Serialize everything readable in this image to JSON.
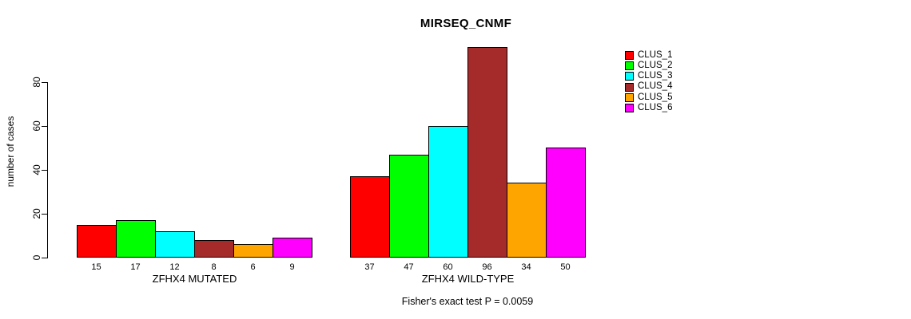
{
  "chart_data": {
    "type": "bar",
    "title": "MIRSEQ_CNMF",
    "ylabel": "number of cases",
    "yticks": [
      0,
      20,
      40,
      60,
      80
    ],
    "ylim": [
      0,
      100
    ],
    "grid": false,
    "legend_position": "right",
    "legend": [
      "CLUS_1",
      "CLUS_2",
      "CLUS_3",
      "CLUS_4",
      "CLUS_5",
      "CLUS_6"
    ],
    "colors": [
      "#FF0000",
      "#00FF00",
      "#00FFFF",
      "#A52A2A",
      "#FFA500",
      "#FF00FF"
    ],
    "groups": [
      {
        "label": "ZFHX4 MUTATED",
        "values": [
          15,
          17,
          12,
          8,
          6,
          9
        ]
      },
      {
        "label": "ZFHX4 WILD-TYPE",
        "values": [
          37,
          47,
          60,
          96,
          34,
          50
        ]
      }
    ],
    "annotation": "Fisher's exact test P = 0.0059"
  }
}
